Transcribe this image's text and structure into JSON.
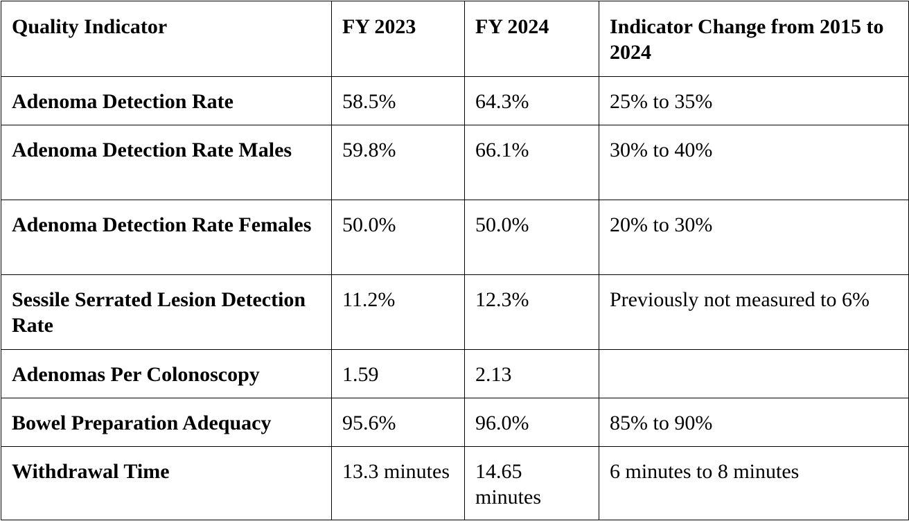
{
  "table": {
    "headers": [
      "Quality Indicator",
      "FY 2023",
      "FY 2024",
      "Indicator Change from 2015 to 2024"
    ],
    "rows": [
      [
        "Adenoma Detection Rate",
        "58.5%",
        "64.3%",
        "25% to 35%"
      ],
      [
        "Adenoma Detection Rate Males",
        "59.8%",
        "66.1%",
        "30% to 40%"
      ],
      [
        "Adenoma Detection Rate Females",
        "50.0%",
        "50.0%",
        "20% to 30%"
      ],
      [
        "Sessile Serrated Lesion Detection Rate",
        "11.2%",
        "12.3%",
        "Previously not measured to 6%"
      ],
      [
        "Adenomas Per Colonoscopy",
        "1.59",
        "2.13",
        ""
      ],
      [
        "Bowel Preparation Adequacy",
        "95.6%",
        "96.0%",
        "85% to 90%"
      ],
      [
        "Withdrawal Time",
        "13.3 minutes",
        "14.65 minutes",
        "6 minutes to 8 minutes"
      ]
    ]
  }
}
